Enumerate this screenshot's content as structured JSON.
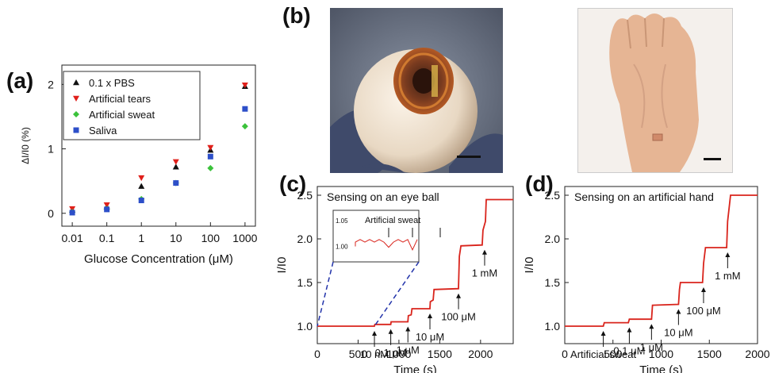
{
  "panels": {
    "a": {
      "letter": "(a)",
      "chart_data": {
        "type": "scatter",
        "title": "",
        "xlabel": "Glucose Concentration (μM)",
        "ylabel": "ΔI/I0 (%)",
        "xscale": "log",
        "xticks": [
          "0.01",
          "0.1",
          "1",
          "10",
          "100",
          "1000"
        ],
        "yticks": [
          "0",
          "1",
          "2"
        ],
        "ylim": [
          -0.2,
          2.3
        ],
        "legend": "top-left",
        "x": [
          0.01,
          0.1,
          1,
          10,
          100,
          1000
        ],
        "series": [
          {
            "name": "0.1 x PBS",
            "marker": "triangle-up",
            "color": "#111111",
            "values": [
              0.05,
              0.1,
              0.42,
              0.72,
              0.98,
              1.97
            ]
          },
          {
            "name": "Artificial tears",
            "marker": "triangle-down",
            "color": "#e0201b",
            "values": [
              0.07,
              0.13,
              0.55,
              0.8,
              1.02,
              1.99
            ]
          },
          {
            "name": "Artificial sweat",
            "marker": "diamond",
            "color": "#3bc23b",
            "values": [
              0.02,
              0.07,
              0.22,
              0.47,
              0.7,
              1.35
            ]
          },
          {
            "name": "Saliva",
            "marker": "square",
            "color": "#2d4fc9",
            "values": [
              0.01,
              0.06,
              0.2,
              0.47,
              0.88,
              1.62
            ]
          }
        ]
      }
    },
    "b": {
      "letter": "(b)",
      "photos": [
        {
          "name": "eye-ball-photo"
        },
        {
          "name": "artificial-hand-photo"
        }
      ]
    },
    "c": {
      "letter": "(c)",
      "chart_data": {
        "type": "line",
        "title": "Sensing on an eye ball",
        "xlabel": "Time (s)",
        "ylabel": "I/I0",
        "xlim": [
          0,
          2400
        ],
        "ylim": [
          0.8,
          2.6
        ],
        "xticks": [
          "0",
          "500",
          "1000",
          "1500",
          "2000"
        ],
        "yticks": [
          "1.0",
          "1.5",
          "2.0",
          "2.5"
        ],
        "color": "#d9241c",
        "series": [
          {
            "x": [
              0,
              700,
              705,
              900,
              905,
              1110,
              1115,
              1150,
              1160,
              1380,
              1385,
              1420,
              1430,
              1730,
              1740,
              1760,
              2020,
              2030,
              2060,
              2070,
              2400
            ],
            "values": [
              1.0,
              1.0,
              1.02,
              1.02,
              1.05,
              1.05,
              1.12,
              1.13,
              1.2,
              1.2,
              1.28,
              1.3,
              1.42,
              1.43,
              1.8,
              1.92,
              1.93,
              2.1,
              2.2,
              2.45,
              2.45
            ]
          }
        ],
        "annotations": [
          {
            "text": "10 nM",
            "x": 700,
            "y": 1.0
          },
          {
            "text": "0.1 μM",
            "x": 900,
            "y": 1.02
          },
          {
            "text": "1 μM",
            "x": 1110,
            "y": 1.05
          },
          {
            "text": "10 μM",
            "x": 1380,
            "y": 1.2
          },
          {
            "text": "100 μM",
            "x": 1730,
            "y": 1.43
          },
          {
            "text": "1 mM",
            "x": 2050,
            "y": 1.93
          }
        ],
        "inset": {
          "title": "Artificial sweat",
          "yticks": [
            "1.05",
            "1.00"
          ],
          "ylim": [
            0.97,
            1.07
          ]
        }
      }
    },
    "d": {
      "letter": "(d)",
      "chart_data": {
        "type": "line",
        "title": "Sensing on an artificial hand",
        "xlabel": "Time (s)",
        "ylabel": "I/I0",
        "xlim": [
          0,
          2000
        ],
        "ylim": [
          0.8,
          2.6
        ],
        "xticks": [
          "0",
          "500",
          "1000",
          "1500",
          "2000"
        ],
        "yticks": [
          "1.0",
          "1.5",
          "2.0",
          "2.5"
        ],
        "color": "#d9241c",
        "series": [
          {
            "x": [
              0,
              400,
              410,
              660,
              670,
              900,
              910,
              1180,
              1190,
              1200,
              1430,
              1440,
              1460,
              1680,
              1690,
              1720,
              2000
            ],
            "values": [
              1.0,
              1.0,
              1.04,
              1.04,
              1.08,
              1.08,
              1.24,
              1.25,
              1.42,
              1.5,
              1.5,
              1.72,
              1.9,
              1.9,
              2.2,
              2.5,
              2.5
            ]
          }
        ],
        "annotations": [
          {
            "text": "Artificial sweat",
            "x": 400,
            "y": 1.0
          },
          {
            "text": "0.1 μM",
            "x": 670,
            "y": 1.04
          },
          {
            "text": "1 μM",
            "x": 900,
            "y": 1.08
          },
          {
            "text": "10 μM",
            "x": 1180,
            "y": 1.25
          },
          {
            "text": "100 μM",
            "x": 1440,
            "y": 1.5
          },
          {
            "text": "1 mM",
            "x": 1690,
            "y": 1.9
          }
        ]
      }
    }
  }
}
